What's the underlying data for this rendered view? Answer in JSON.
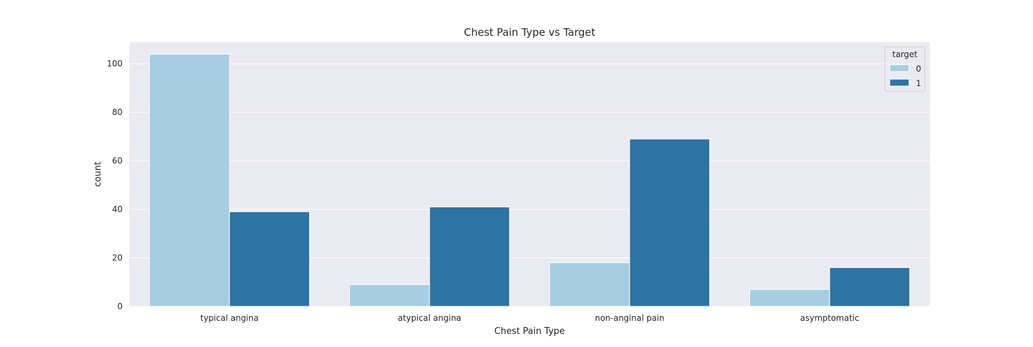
{
  "chart_data": {
    "type": "bar",
    "title": "Chest Pain Type vs Target",
    "xlabel": "Chest Pain Type",
    "ylabel": "count",
    "categories": [
      "typical angina",
      "atypical angina",
      "non-anginal pain",
      "asymptomatic"
    ],
    "series": [
      {
        "name": "0",
        "values": [
          104,
          9,
          18,
          7
        ],
        "color": "#a6cde2"
      },
      {
        "name": "1",
        "values": [
          39,
          41,
          69,
          16
        ],
        "color": "#2d73a4"
      }
    ],
    "ylim": [
      0,
      109
    ],
    "yticks": [
      0,
      20,
      40,
      60,
      80,
      100
    ],
    "grid": true,
    "legend": {
      "title": "target",
      "placement": "top-right"
    },
    "colors": {
      "plot_background": "#eaeaf2",
      "grid": "#ffffff",
      "bar_edge": "#ffffff"
    }
  }
}
